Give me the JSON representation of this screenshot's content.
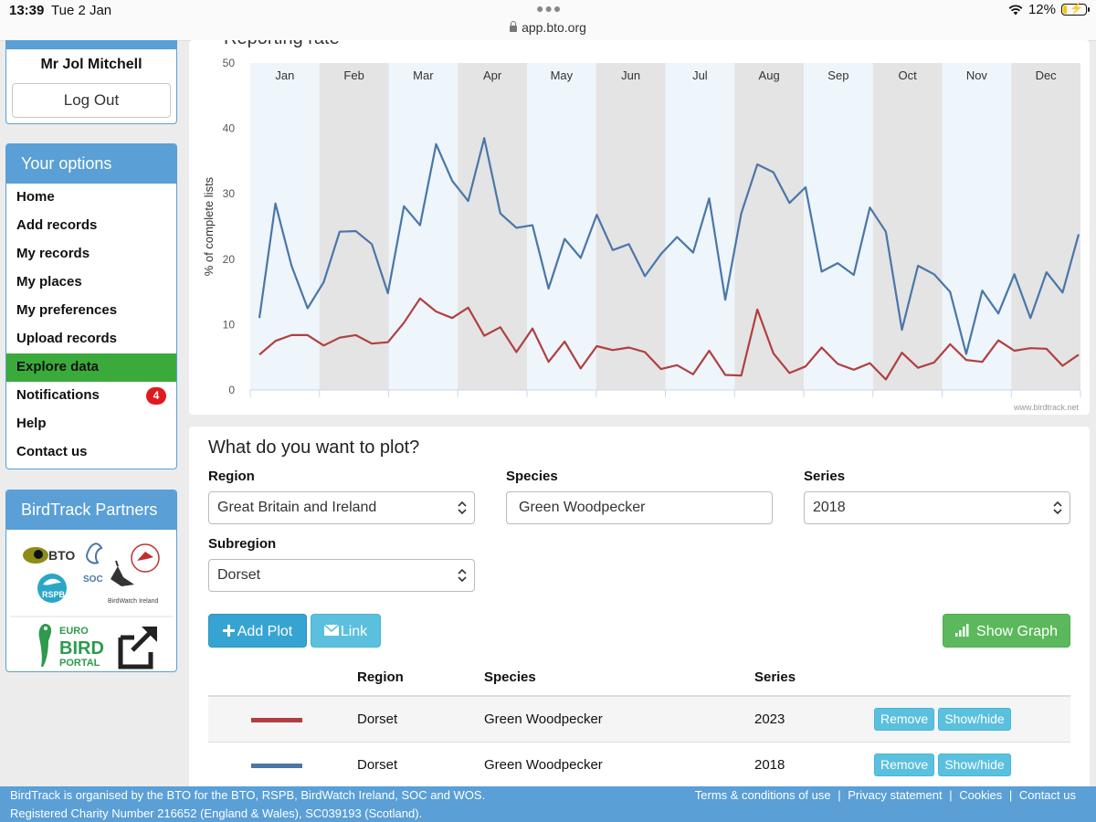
{
  "status_bar": {
    "time": "13:39",
    "date": "Tue 2 Jan",
    "url": "app.bto.org",
    "battery": "12%"
  },
  "user": {
    "name": "Mr Jol Mitchell",
    "logout_label": "Log Out"
  },
  "options": {
    "title": "Your options",
    "items": [
      {
        "label": "Home"
      },
      {
        "label": "Add records"
      },
      {
        "label": "My records"
      },
      {
        "label": "My places"
      },
      {
        "label": "My preferences"
      },
      {
        "label": "Upload records"
      },
      {
        "label": "Explore data"
      },
      {
        "label": "Notifications",
        "badge": "4"
      },
      {
        "label": "Help"
      },
      {
        "label": "Contact us"
      }
    ]
  },
  "partners": {
    "title": "BirdTrack Partners",
    "logos": [
      "BTO",
      "SOC",
      "RSPB",
      "BirdWatch Ireland",
      "WOS",
      "EURO BIRD PORTAL"
    ]
  },
  "chart": {
    "title": "Reporting rate",
    "watermark": "www.birdtrack.net"
  },
  "chart_data": {
    "type": "line",
    "ylabel": "% of complete lists",
    "ylim": [
      0,
      50
    ],
    "yticks": [
      0,
      10,
      20,
      30,
      40,
      50
    ],
    "months": [
      "Jan",
      "Feb",
      "Mar",
      "Apr",
      "May",
      "Jun",
      "Jul",
      "Aug",
      "Sep",
      "Oct",
      "Nov",
      "Dec"
    ],
    "series": [
      {
        "name": "2018",
        "color": "#4a76a8",
        "values": [
          11,
          28.5,
          19,
          12.5,
          16.5,
          24.2,
          24.3,
          22.3,
          14.8,
          28.1,
          25.2,
          37.6,
          32,
          28.9,
          38.5,
          27,
          24.8,
          25.2,
          15.5,
          23.1,
          20.2,
          26.8,
          21.4,
          22.3,
          17.4,
          20.8,
          23.4,
          21,
          29.3,
          13.8,
          27,
          34.5,
          33.3,
          28.6,
          31,
          18.1,
          19.4,
          17.6,
          27.9,
          24.2,
          9.2,
          19,
          17.7,
          15,
          5.5,
          15.2,
          11.7,
          17.7,
          11,
          18,
          14.9,
          23.8
        ]
      },
      {
        "name": "2023",
        "color": "#b04040",
        "values": [
          5.4,
          7.5,
          8.4,
          8.4,
          6.8,
          8,
          8.4,
          7.1,
          7.3,
          10.3,
          14,
          12,
          11,
          12.6,
          8.3,
          9.6,
          5.8,
          9.4,
          4.3,
          7.4,
          3.3,
          6.7,
          6.1,
          6.5,
          5.8,
          3.2,
          3.8,
          2.4,
          6,
          2.3,
          2.2,
          12.3,
          5.6,
          2.6,
          3.6,
          6.5,
          4,
          3.1,
          4.1,
          1.6,
          5.7,
          3.4,
          4.2,
          7,
          4.6,
          4.3,
          7.6,
          6,
          6.4,
          6.3,
          3.7,
          5.4
        ]
      }
    ]
  },
  "form": {
    "heading": "What do you want to plot?",
    "region_label": "Region",
    "region_value": "Great Britain and Ireland",
    "species_label": "Species",
    "species_value": "Green Woodpecker",
    "series_label": "Series",
    "series_value": "2018",
    "subregion_label": "Subregion",
    "subregion_value": "Dorset",
    "add_plot_label": "Add Plot",
    "link_label": "Link",
    "show_graph_label": "Show Graph"
  },
  "plots_table": {
    "headers": [
      "Region",
      "Species",
      "Series"
    ],
    "rows": [
      {
        "color": "#b04040",
        "region": "Dorset",
        "species": "Green Woodpecker",
        "series": "2023",
        "remove": "Remove",
        "showhide": "Show/hide"
      },
      {
        "color": "#4a76a8",
        "region": "Dorset",
        "species": "Green Woodpecker",
        "series": "2018",
        "remove": "Remove",
        "showhide": "Show/hide"
      }
    ]
  },
  "footer": {
    "line1": "BirdTrack is organised by the BTO for the BTO, RSPB, BirdWatch Ireland, SOC and WOS.",
    "line2": "Registered Charity Number 216652 (England & Wales), SC039193 (Scotland).",
    "links": [
      "Terms & conditions of use",
      "Privacy statement",
      "Cookies",
      "Contact us"
    ]
  }
}
